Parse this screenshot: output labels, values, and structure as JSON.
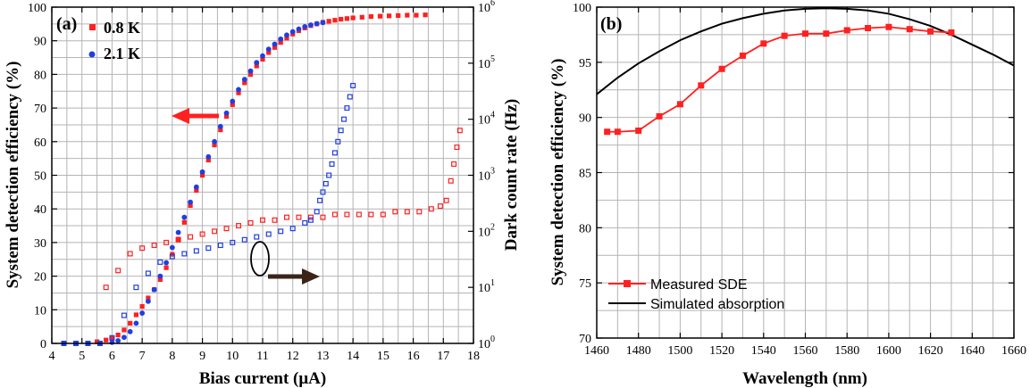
{
  "colors": {
    "red": "#ff2020",
    "blue": "#1f3fe0",
    "black": "#000000",
    "arrow_dark": "#3a2418",
    "grid": "#b4b4b4"
  },
  "chart_data": [
    {
      "panel": "(a)",
      "type": "scatter",
      "xlabel": "Bias current (μA)",
      "ylabel": "System detection efficiency (%)",
      "y2label": "Dark count rate (Hz)",
      "xlim": [
        4,
        18
      ],
      "ylim": [
        0,
        100
      ],
      "y2lim_log10": [
        0,
        6
      ],
      "x_ticks": [
        "4",
        "5",
        "6",
        "7",
        "8",
        "9",
        "10",
        "11",
        "12",
        "13",
        "14",
        "15",
        "16",
        "17",
        "18"
      ],
      "y_ticks": [
        "0",
        "10",
        "20",
        "30",
        "40",
        "50",
        "60",
        "70",
        "80",
        "90",
        "100"
      ],
      "y2_ticks": [
        {
          "base": "10",
          "exp": "0"
        },
        {
          "base": "10",
          "exp": "1"
        },
        {
          "base": "10",
          "exp": "2"
        },
        {
          "base": "10",
          "exp": "3"
        },
        {
          "base": "10",
          "exp": "4"
        },
        {
          "base": "10",
          "exp": "5"
        },
        {
          "base": "10",
          "exp": "6"
        }
      ],
      "grid": true,
      "legend": [
        {
          "label": "0.8 K",
          "color": "red",
          "marker": "square"
        },
        {
          "label": "2.1 K",
          "color": "blue",
          "marker": "circle"
        }
      ],
      "series": [
        {
          "name": "SDE 0.8 K",
          "axis": "left",
          "color": "red",
          "marker": "filled-square",
          "x": [
            5.5,
            5.8,
            6.0,
            6.2,
            6.4,
            6.6,
            6.8,
            7.0,
            7.2,
            7.4,
            7.6,
            7.8,
            8.0,
            8.2,
            8.4,
            8.6,
            8.8,
            9.0,
            9.2,
            9.4,
            9.6,
            9.8,
            10.0,
            10.2,
            10.4,
            10.6,
            10.8,
            11.0,
            11.2,
            11.4,
            11.6,
            11.8,
            12.0,
            12.2,
            12.4,
            12.6,
            12.8,
            13.0,
            13.2,
            13.4,
            13.6,
            13.8,
            14.0,
            14.3,
            14.6,
            14.9,
            15.2,
            15.5,
            15.8,
            16.1,
            16.4
          ],
          "y": [
            0.5,
            1.0,
            1.5,
            2.5,
            4.0,
            6.0,
            8.5,
            11.0,
            13.5,
            16.0,
            19.0,
            22.5,
            26.5,
            31.0,
            36.0,
            41.0,
            45.5,
            50.0,
            54.5,
            59.0,
            63.5,
            67.5,
            71.0,
            74.5,
            77.5,
            80.0,
            82.5,
            84.5,
            86.5,
            88.0,
            89.5,
            90.8,
            92.0,
            93.0,
            93.8,
            94.5,
            95.0,
            95.5,
            95.8,
            96.1,
            96.4,
            96.6,
            96.8,
            97.0,
            97.2,
            97.3,
            97.4,
            97.5,
            97.6,
            97.6,
            97.7
          ]
        },
        {
          "name": "SDE 2.1 K",
          "axis": "left",
          "color": "blue",
          "marker": "filled-circle",
          "x": [
            4.4,
            4.8,
            5.2,
            5.6,
            6.0,
            6.2,
            6.4,
            6.6,
            6.8,
            7.0,
            7.2,
            7.4,
            7.6,
            7.8,
            8.0,
            8.2,
            8.4,
            8.6,
            8.8,
            9.0,
            9.2,
            9.4,
            9.6,
            9.8,
            10.0,
            10.2,
            10.4,
            10.6,
            10.8,
            11.0,
            11.2,
            11.4,
            11.6,
            11.8,
            12.0,
            12.2,
            12.4,
            12.6,
            12.8,
            13.0
          ],
          "y": [
            0.0,
            0.0,
            0.0,
            0.0,
            0.3,
            0.8,
            1.8,
            3.5,
            6.0,
            9.0,
            12.5,
            16.0,
            20.0,
            24.0,
            28.5,
            33.0,
            37.5,
            42.0,
            46.5,
            51.0,
            55.5,
            60.0,
            64.5,
            68.5,
            72.0,
            75.5,
            78.5,
            81.0,
            83.5,
            85.5,
            87.5,
            89.0,
            90.5,
            91.7,
            92.7,
            93.5,
            94.2,
            94.7,
            95.1,
            95.4
          ]
        },
        {
          "name": "DCR 0.8 K",
          "axis": "right",
          "color": "red",
          "marker": "open-square",
          "x": [
            5.8,
            6.2,
            6.6,
            7.0,
            7.4,
            7.8,
            8.2,
            8.6,
            9.0,
            9.4,
            9.8,
            10.2,
            10.6,
            11.0,
            11.4,
            11.8,
            12.2,
            12.6,
            13.0,
            13.4,
            13.8,
            14.2,
            14.6,
            15.0,
            15.4,
            15.8,
            16.2,
            16.6,
            16.9,
            17.1,
            17.25,
            17.35,
            17.45,
            17.55
          ],
          "y": [
            1.0,
            1.3,
            1.6,
            1.7,
            1.75,
            1.8,
            1.85,
            1.9,
            1.95,
            2.0,
            2.05,
            2.1,
            2.15,
            2.2,
            2.2,
            2.25,
            2.25,
            2.25,
            2.25,
            2.3,
            2.3,
            2.3,
            2.3,
            2.3,
            2.35,
            2.35,
            2.35,
            2.4,
            2.45,
            2.55,
            2.9,
            3.2,
            3.5,
            3.8
          ]
        },
        {
          "name": "DCR 2.1 K",
          "axis": "right",
          "color": "blue",
          "marker": "open-square",
          "x": [
            4.4,
            4.8,
            5.2,
            5.6,
            6.0,
            6.4,
            6.8,
            7.2,
            7.6,
            8.0,
            8.4,
            8.8,
            9.2,
            9.6,
            10.0,
            10.4,
            10.8,
            11.2,
            11.6,
            12.0,
            12.4,
            12.6,
            12.8,
            12.9,
            13.0,
            13.1,
            13.2,
            13.3,
            13.4,
            13.5,
            13.6,
            13.7,
            13.8,
            13.9,
            14.0
          ],
          "y": [
            0.0,
            0.0,
            0.0,
            0.0,
            0.1,
            0.5,
            1.0,
            1.25,
            1.45,
            1.55,
            1.6,
            1.65,
            1.7,
            1.75,
            1.8,
            1.85,
            1.9,
            1.95,
            2.0,
            2.05,
            2.15,
            2.2,
            2.35,
            2.55,
            2.7,
            2.85,
            3.0,
            3.2,
            3.4,
            3.6,
            3.8,
            4.0,
            4.2,
            4.4,
            4.6
          ]
        }
      ]
    },
    {
      "panel": "(b)",
      "type": "line",
      "xlabel": "Wavelength (nm)",
      "ylabel": "System detection efficiency (%)",
      "xlim": [
        1460,
        1660
      ],
      "ylim": [
        70,
        100
      ],
      "x_ticks": [
        "1460",
        "1480",
        "1500",
        "1520",
        "1540",
        "1560",
        "1580",
        "1600",
        "1620",
        "1640",
        "1660"
      ],
      "y_ticks": [
        "70",
        "75",
        "80",
        "85",
        "90",
        "95",
        "100"
      ],
      "grid": true,
      "legend_position": "bottom-left",
      "series": [
        {
          "name": "Measured SDE",
          "color": "red",
          "marker": "filled-square",
          "x": [
            1465,
            1470,
            1480,
            1490,
            1500,
            1510,
            1520,
            1530,
            1540,
            1550,
            1560,
            1570,
            1580,
            1590,
            1600,
            1610,
            1620,
            1630
          ],
          "y": [
            88.7,
            88.7,
            88.8,
            90.1,
            91.2,
            92.9,
            94.4,
            95.6,
            96.7,
            97.4,
            97.6,
            97.6,
            97.9,
            98.1,
            98.2,
            98.0,
            97.8,
            97.7
          ]
        },
        {
          "name": "Simulated absorption",
          "color": "black",
          "marker": "none",
          "x": [
            1460,
            1470,
            1480,
            1490,
            1500,
            1510,
            1520,
            1530,
            1540,
            1550,
            1560,
            1570,
            1580,
            1590,
            1600,
            1610,
            1620,
            1630,
            1640,
            1650,
            1660
          ],
          "y": [
            92.1,
            93.6,
            94.9,
            96.0,
            97.0,
            97.8,
            98.5,
            99.0,
            99.4,
            99.7,
            99.85,
            99.9,
            99.85,
            99.7,
            99.4,
            98.9,
            98.3,
            97.5,
            96.6,
            95.7,
            94.7
          ]
        }
      ]
    }
  ]
}
